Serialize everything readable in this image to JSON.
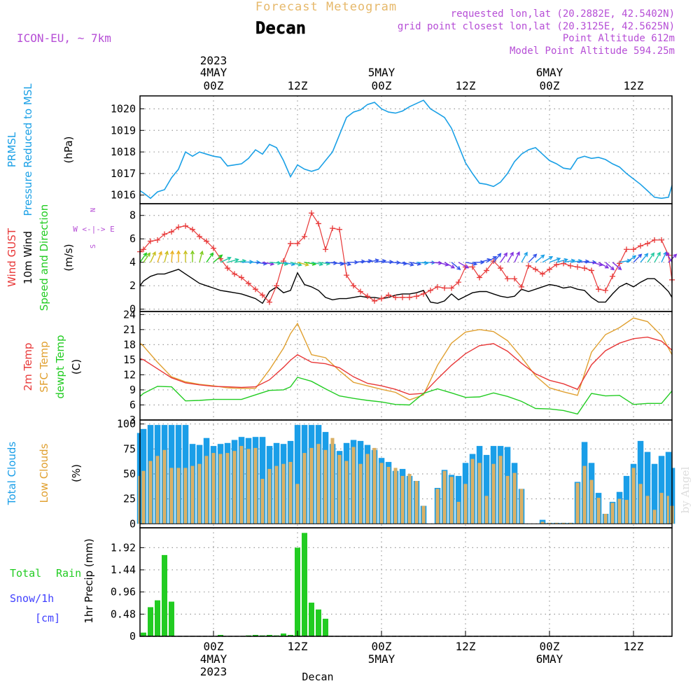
{
  "header": {
    "subtitle": "Forecast Meteogram",
    "location": "Decan",
    "model": "ICON-EU, ~ 7km",
    "requested": "requested lon,lat (20.2882E, 42.5402N)",
    "gridpoint": "grid point closest lon,lat (20.3125E, 42.5625N)",
    "altitude": "Point Altitude 612m",
    "model_altitude": "Model Point Altitude 594.25m",
    "watermark": "by Angel",
    "footer_location": "Decan"
  },
  "time_axis": {
    "top_year": "2023",
    "labels": [
      {
        "t": 24,
        "top": [
          "4MAY",
          "00Z"
        ],
        "bottom": [
          "00Z",
          "4MAY",
          "2023"
        ]
      },
      {
        "t": 36,
        "top": [
          "12Z"
        ],
        "bottom": [
          "12Z"
        ]
      },
      {
        "t": 48,
        "top": [
          "5MAY",
          "00Z"
        ],
        "bottom": [
          "00Z",
          "5MAY"
        ]
      },
      {
        "t": 60,
        "top": [
          "12Z"
        ],
        "bottom": [
          "12Z"
        ]
      },
      {
        "t": 72,
        "top": [
          "6MAY",
          "00Z"
        ],
        "bottom": [
          "00Z",
          "6MAY"
        ]
      },
      {
        "t": 84,
        "top": [
          "12Z"
        ],
        "bottom": [
          "12Z"
        ]
      }
    ]
  },
  "colors": {
    "pressure": "#1aa0e6",
    "gust": "#e83838",
    "wind": "#000000",
    "temp2m": "#e83838",
    "sfc": "#e0a030",
    "dewpt": "#22cc22",
    "total_clouds": "#1a9ee8",
    "low_clouds": "#d9b066",
    "rain": "#22cc22",
    "snow": "#4040ff",
    "purple": "#b64ed6",
    "header_orange": "#e6b86a"
  },
  "chart_data": [
    {
      "type": "line",
      "name": "pressure",
      "labels": [
        "PRMSL",
        "Pressure Reduced to MSL"
      ],
      "unit": "(hPa)",
      "yticks": [
        1016,
        1017,
        1018,
        1019,
        1020
      ],
      "ylim": [
        1015.6,
        1020.6
      ],
      "x": [
        13.5,
        14,
        15,
        16,
        17,
        18,
        19,
        20,
        21,
        22,
        23,
        24,
        25,
        26,
        27,
        28,
        29,
        30,
        31,
        32,
        33,
        34,
        35,
        36,
        37,
        38,
        39,
        40,
        41,
        42,
        43,
        44,
        45,
        46,
        47,
        48,
        49,
        50,
        51,
        52,
        53,
        54,
        55,
        56,
        57,
        58,
        59,
        60,
        61,
        62,
        63,
        64,
        65,
        66,
        67,
        68,
        69,
        70,
        71,
        72,
        73,
        74,
        75,
        76,
        77,
        78,
        79,
        80,
        81,
        82,
        83,
        84,
        85,
        86,
        87,
        88,
        89,
        89.5
      ],
      "values": [
        1016.2,
        1016.1,
        1015.85,
        1016.15,
        1016.25,
        1016.8,
        1017.2,
        1018.0,
        1017.8,
        1018.0,
        1017.9,
        1017.8,
        1017.75,
        1017.35,
        1017.4,
        1017.45,
        1017.7,
        1018.1,
        1017.9,
        1018.35,
        1018.2,
        1017.6,
        1016.85,
        1017.4,
        1017.2,
        1017.1,
        1017.2,
        1017.6,
        1018.0,
        1018.8,
        1019.6,
        1019.85,
        1019.95,
        1020.2,
        1020.3,
        1020.0,
        1019.85,
        1019.8,
        1019.9,
        1020.1,
        1020.25,
        1020.4,
        1020.0,
        1019.8,
        1019.6,
        1019.1,
        1018.3,
        1017.5,
        1017.0,
        1016.55,
        1016.5,
        1016.4,
        1016.6,
        1017.0,
        1017.55,
        1017.9,
        1018.1,
        1018.2,
        1017.9,
        1017.6,
        1017.45,
        1017.25,
        1017.2,
        1017.7,
        1017.8,
        1017.7,
        1017.75,
        1017.65,
        1017.45,
        1017.3,
        1017.0,
        1016.75,
        1016.5,
        1016.2,
        1015.9,
        1015.85,
        1015.9,
        1016.45
      ]
    },
    {
      "type": "line",
      "name": "wind",
      "labels": [
        "Wind GUST",
        "10m Wind",
        "Speed and Direction"
      ],
      "unit": "(m/s)",
      "compass": [
        "N",
        "W <-|-> E",
        "S"
      ],
      "yticks": [
        0,
        2,
        4,
        6,
        8
      ],
      "ylim": [
        -0.2,
        9
      ],
      "x": [
        13.5,
        14,
        15,
        16,
        17,
        18,
        19,
        20,
        21,
        22,
        23,
        24,
        25,
        26,
        27,
        28,
        29,
        30,
        31,
        32,
        33,
        34,
        35,
        36,
        37,
        38,
        39,
        40,
        41,
        42,
        43,
        44,
        45,
        46,
        47,
        48,
        49,
        50,
        51,
        52,
        53,
        54,
        55,
        56,
        57,
        58,
        59,
        60,
        61,
        62,
        63,
        64,
        65,
        66,
        67,
        68,
        69,
        70,
        71,
        72,
        73,
        74,
        75,
        76,
        77,
        78,
        79,
        80,
        81,
        82,
        83,
        84,
        85,
        86,
        87,
        88,
        89,
        89.5
      ],
      "series": [
        {
          "name": "Wind GUST",
          "values": [
            4.9,
            5.1,
            5.8,
            5.9,
            6.4,
            6.6,
            7.0,
            7.1,
            6.8,
            6.2,
            5.8,
            5.2,
            4.3,
            3.5,
            3.0,
            2.7,
            2.2,
            1.7,
            1.2,
            0.6,
            2.0,
            4.1,
            5.6,
            5.6,
            6.2,
            8.2,
            7.3,
            5.1,
            6.9,
            6.8,
            2.9,
            2.0,
            1.5,
            1.1,
            0.7,
            0.9,
            1.2,
            1.0,
            1.0,
            1.0,
            1.1,
            1.3,
            1.6,
            1.9,
            1.8,
            1.8,
            2.3,
            3.6,
            3.6,
            2.7,
            3.3,
            4.1,
            3.5,
            2.6,
            2.6,
            1.9,
            3.7,
            3.4,
            3.0,
            3.4,
            3.8,
            3.9,
            3.7,
            3.6,
            3.5,
            3.3,
            1.7,
            1.6,
            2.8,
            3.9,
            5.1,
            5.1,
            5.4,
            5.6,
            5.9,
            5.9,
            4.6,
            2.5
          ]
        },
        {
          "name": "10m Wind",
          "values": [
            2.0,
            2.4,
            2.8,
            3.0,
            3.0,
            3.2,
            3.4,
            3.0,
            2.6,
            2.2,
            2.0,
            1.8,
            1.6,
            1.5,
            1.4,
            1.3,
            1.1,
            0.9,
            0.5,
            1.5,
            1.9,
            1.4,
            1.6,
            3.1,
            2.1,
            1.9,
            1.6,
            1.0,
            0.8,
            0.9,
            0.9,
            1.0,
            1.1,
            1.0,
            1.0,
            0.9,
            1.0,
            1.2,
            1.3,
            1.3,
            1.4,
            1.6,
            0.6,
            0.5,
            0.7,
            1.3,
            0.8,
            1.1,
            1.4,
            1.5,
            1.5,
            1.3,
            1.1,
            1.0,
            1.1,
            1.7,
            1.5,
            1.7,
            1.9,
            2.1,
            2.0,
            1.8,
            1.9,
            1.7,
            1.6,
            1.0,
            0.6,
            0.6,
            1.3,
            1.9,
            2.2,
            1.9,
            2.3,
            2.6,
            2.6,
            2.1,
            1.5,
            1.0
          ]
        }
      ],
      "arrow_level": 4,
      "arrow_dirs_deg": [
        215,
        215,
        205,
        200,
        195,
        185,
        180,
        180,
        180,
        195,
        215,
        230,
        245,
        255,
        262,
        268,
        270,
        278,
        280,
        275,
        280,
        282,
        285,
        285,
        280,
        282,
        278,
        275,
        280,
        282,
        270,
        265,
        262,
        258,
        262,
        268,
        272,
        278,
        285,
        280,
        275,
        272,
        275,
        285,
        300,
        310,
        300,
        280,
        270,
        255,
        240,
        220,
        215,
        210,
        205,
        210,
        225,
        230,
        240,
        250,
        255,
        260,
        262,
        265,
        270,
        285,
        300,
        312,
        310,
        260,
        235,
        225,
        220,
        215,
        210,
        205,
        225,
        150
      ]
    },
    {
      "type": "line",
      "name": "temperature",
      "labels": [
        "2m Temp",
        "SFC Temp",
        "dewpt Temp"
      ],
      "unit": "(C)",
      "yticks": [
        3,
        6,
        9,
        12,
        15,
        18,
        21,
        24
      ],
      "ylim": [
        3,
        24.6
      ],
      "x": [
        13.5,
        14,
        16,
        18,
        20,
        22,
        24,
        26,
        28,
        30,
        32,
        34,
        35,
        36,
        38,
        40,
        42,
        44,
        46,
        48,
        50,
        52,
        54,
        56,
        58,
        60,
        62,
        64,
        66,
        68,
        70,
        72,
        74,
        76,
        78,
        80,
        82,
        84,
        86,
        88,
        89.5
      ],
      "series": [
        {
          "name": "2m Temp",
          "values": [
            15.2,
            15.0,
            13.2,
            11.4,
            10.4,
            10.0,
            9.7,
            9.6,
            9.5,
            9.6,
            11.0,
            13.5,
            14.9,
            16.0,
            14.5,
            14.2,
            13.4,
            11.6,
            10.3,
            9.8,
            9.1,
            8.1,
            8.3,
            11.2,
            13.9,
            16.2,
            17.8,
            18.2,
            16.7,
            14.3,
            12.2,
            10.9,
            10.2,
            9.1,
            14.0,
            16.8,
            18.3,
            19.2,
            19.5,
            18.7,
            16.9
          ]
        },
        {
          "name": "SFC Temp",
          "values": [
            18.3,
            17.7,
            14.5,
            11.6,
            10.6,
            10.1,
            9.8,
            9.4,
            9.3,
            9.3,
            13.0,
            17.3,
            20.2,
            22.2,
            16.0,
            15.4,
            12.8,
            10.5,
            9.8,
            9.1,
            8.5,
            7.0,
            8.0,
            13.9,
            18.3,
            20.5,
            21.0,
            20.6,
            18.8,
            15.5,
            11.8,
            9.4,
            8.6,
            7.9,
            16.5,
            20.0,
            21.4,
            23.3,
            22.6,
            19.8,
            16.0
          ]
        },
        {
          "name": "dewpt Temp",
          "values": [
            7.7,
            8.3,
            9.7,
            9.6,
            6.8,
            6.9,
            7.1,
            7.1,
            7.1,
            8.0,
            8.9,
            9.0,
            9.6,
            11.5,
            10.7,
            9.2,
            7.8,
            7.3,
            6.9,
            6.6,
            6.1,
            6.0,
            8.3,
            9.2,
            8.4,
            7.5,
            7.6,
            8.4,
            7.7,
            6.7,
            5.3,
            5.2,
            4.9,
            4.2,
            8.3,
            7.8,
            7.9,
            6.1,
            6.3,
            6.3,
            8.8
          ]
        }
      ]
    },
    {
      "type": "bar",
      "name": "clouds",
      "labels": [
        "Total Clouds",
        "Low Clouds"
      ],
      "unit": "(%)",
      "yticks": [
        0,
        25,
        50,
        75,
        100
      ],
      "ylim": [
        -4,
        104
      ],
      "x": [
        13.5,
        14,
        15,
        16,
        17,
        18,
        19,
        20,
        21,
        22,
        23,
        24,
        25,
        26,
        27,
        28,
        29,
        30,
        31,
        32,
        33,
        34,
        35,
        36,
        37,
        38,
        39,
        40,
        41,
        42,
        43,
        44,
        45,
        46,
        47,
        48,
        49,
        50,
        51,
        52,
        53,
        54,
        55,
        56,
        57,
        58,
        59,
        60,
        61,
        62,
        63,
        64,
        65,
        66,
        67,
        68,
        69,
        70,
        71,
        72,
        73,
        74,
        75,
        76,
        77,
        78,
        79,
        80,
        81,
        82,
        83,
        84,
        85,
        86,
        87,
        88,
        89,
        89.5
      ],
      "series": [
        {
          "name": "Total Clouds",
          "values": [
            91,
            95,
            99,
            99,
            99,
            99,
            99,
            99,
            80,
            79,
            86,
            78,
            80,
            81,
            84,
            87,
            86,
            87,
            87,
            78,
            81,
            80,
            83,
            99,
            99,
            99,
            99,
            92,
            80,
            73,
            81,
            84,
            83,
            79,
            74,
            66,
            62,
            53,
            55,
            48,
            43,
            18,
            0,
            36,
            54,
            49,
            48,
            61,
            70,
            78,
            69,
            78,
            78,
            77,
            61,
            35,
            0,
            0,
            4,
            1,
            1,
            1,
            1,
            42,
            82,
            61,
            31,
            10,
            22,
            32,
            48,
            60,
            83,
            72,
            60,
            68,
            72,
            56
          ]
        },
        {
          "name": "Low Clouds",
          "values": [
            48,
            53,
            63,
            68,
            74,
            56,
            56,
            56,
            58,
            60,
            68,
            71,
            70,
            71,
            73,
            78,
            75,
            76,
            45,
            55,
            58,
            60,
            62,
            40,
            71,
            76,
            80,
            74,
            86,
            69,
            63,
            77,
            60,
            70,
            76,
            61,
            57,
            56,
            48,
            50,
            43,
            18,
            0,
            35,
            53,
            47,
            22,
            40,
            65,
            61,
            28,
            60,
            68,
            48,
            51,
            35,
            0,
            0,
            2,
            1,
            1,
            1,
            1,
            41,
            58,
            44,
            26,
            10,
            21,
            25,
            24,
            56,
            40,
            28,
            14,
            31,
            28,
            18
          ]
        }
      ]
    },
    {
      "type": "bar",
      "name": "precip",
      "labels": [
        "Total",
        "Rain",
        "Snow/1h",
        "[cm]"
      ],
      "unit": "1hr Precip (mm)",
      "yticks": [
        0,
        0.48,
        0.96,
        1.44,
        1.92
      ],
      "ylim": [
        0,
        2.35
      ],
      "x": [
        14,
        15,
        16,
        17,
        18,
        25,
        29,
        30,
        31,
        32,
        33,
        34,
        35,
        36,
        37,
        38,
        39,
        40
      ],
      "values": [
        0.08,
        0.63,
        0.78,
        1.76,
        0.75,
        0.03,
        0.02,
        0.03,
        0.02,
        0.03,
        0.02,
        0.06,
        0.03,
        1.92,
        2.24,
        0.73,
        0.58,
        0.38
      ]
    }
  ]
}
